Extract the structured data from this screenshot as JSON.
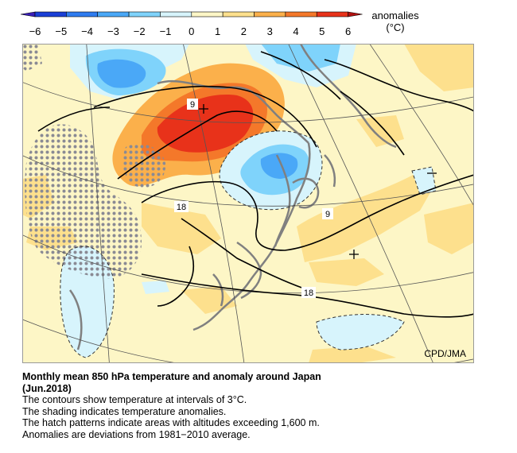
{
  "legend": {
    "title": "anomalies",
    "unit": "(°C)",
    "ticks": [
      "−6",
      "−5",
      "−4",
      "−3",
      "−2",
      "−1",
      "0",
      "1",
      "2",
      "3",
      "4",
      "5",
      "6"
    ],
    "colors": [
      "#1a3fd6",
      "#2f7cf0",
      "#4aa8f7",
      "#7fd3fb",
      "#d7f4fc",
      "#fdf6c6",
      "#fde08d",
      "#fbb04b",
      "#f4782a",
      "#e8321a"
    ]
  },
  "map": {
    "credit": "CPD/JMA",
    "contour_labels": [
      "9",
      "18",
      "9",
      "18"
    ],
    "contour_interval_c": 3,
    "hatch": "areas with altitudes exceeding 1,600 m",
    "colors": {
      "neutral": "#fdf6c6",
      "warm1": "#fde08d",
      "warm2": "#fbb04b",
      "warm3": "#f4782a",
      "warm4": "#e8321a",
      "cool1": "#d7f4fc",
      "cool2": "#7fd3fb",
      "cool3": "#4aa8f7",
      "coast": "#808080",
      "hatch": "#8a8a94"
    }
  },
  "caption": {
    "title": "Monthly mean 850 hPa temperature and anomaly around Japan",
    "subtitle": "(Jun.2018)",
    "lines": [
      "The contours show temperature at intervals of 3°C.",
      "The shading indicates temperature anomalies.",
      "The hatch patterns indicate areas with altitudes exceeding 1,600 m.",
      "Anomalies are deviations from 1981−2010 average."
    ]
  }
}
